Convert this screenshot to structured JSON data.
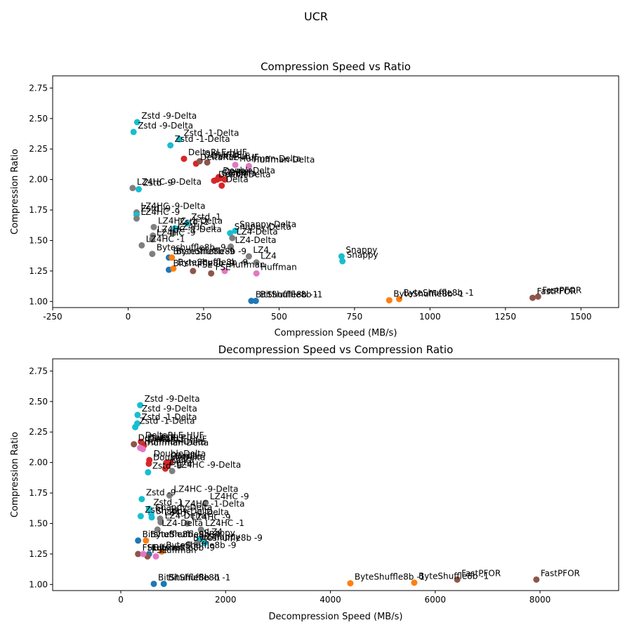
{
  "figure_title": "UCR",
  "legend": "none",
  "grid": false,
  "colors": {
    "blue": "#1f77b4",
    "orange": "#ff7f0e",
    "red": "#d62728",
    "brown": "#8c564b",
    "pink": "#e377c2",
    "gray": "#7f7f7f",
    "cyan": "#17becf"
  },
  "chart_data": [
    {
      "type": "scatter",
      "title": "Compression Speed vs Ratio",
      "xlabel": "Compression Speed (MB/s)",
      "ylabel": "Compression Ratio",
      "xlim": [
        -250,
        1625
      ],
      "ylim": [
        0.95,
        2.85
      ],
      "xticks": [
        -250,
        0,
        250,
        500,
        750,
        1000,
        1250,
        1500
      ],
      "yticks": [
        1.0,
        1.25,
        1.5,
        1.75,
        2.0,
        2.25,
        2.5,
        2.75
      ],
      "points": [
        {
          "x": 30,
          "y": 2.47,
          "label": "Zstd -9-Delta",
          "color": "cyan"
        },
        {
          "x": 18,
          "y": 2.39,
          "label": "Zstd -9-Delta",
          "color": "cyan"
        },
        {
          "x": 170,
          "y": 2.33,
          "label": "Zstd -1-Delta",
          "color": "cyan"
        },
        {
          "x": 140,
          "y": 2.28,
          "label": "Zstd -1-Delta",
          "color": "cyan"
        },
        {
          "x": 185,
          "y": 2.17,
          "label": "DeltaRLE-HUF",
          "color": "red"
        },
        {
          "x": 225,
          "y": 2.13,
          "label": "DeltaRLE-HUF",
          "color": "red"
        },
        {
          "x": 237,
          "y": 2.15,
          "label": "DeltaRLE",
          "color": "brown"
        },
        {
          "x": 262,
          "y": 2.14,
          "label": "DeltaRLE",
          "color": "brown"
        },
        {
          "x": 355,
          "y": 2.12,
          "label": "Huffman-Delta",
          "color": "pink"
        },
        {
          "x": 400,
          "y": 2.11,
          "label": "Huffman-Delta",
          "color": "pink"
        },
        {
          "x": 300,
          "y": 2.02,
          "label": "DoubleDelta",
          "color": "red"
        },
        {
          "x": 285,
          "y": 1.99,
          "label": "DoubleDelta",
          "color": "red"
        },
        {
          "x": 295,
          "y": 2.0,
          "label": "Gorilla",
          "color": "red"
        },
        {
          "x": 320,
          "y": 2.0,
          "label": "Gorilla",
          "color": "red"
        },
        {
          "x": 305,
          "y": 2.01,
          "label": "Delta",
          "color": "red"
        },
        {
          "x": 310,
          "y": 1.95,
          "label": "Delta",
          "color": "red"
        },
        {
          "x": 15,
          "y": 1.93,
          "label": "LZ4HC -9-Delta",
          "color": "gray"
        },
        {
          "x": 35,
          "y": 1.92,
          "label": "Zstd -9",
          "color": "cyan"
        },
        {
          "x": 28,
          "y": 1.73,
          "label": "LZ4HC -9-Delta",
          "color": "gray"
        },
        {
          "x": 28,
          "y": 1.71,
          "label": "Zstd -9",
          "color": "cyan"
        },
        {
          "x": 28,
          "y": 1.68,
          "label": "LZ4HC -9",
          "color": "gray"
        },
        {
          "x": 195,
          "y": 1.64,
          "label": "Zstd -1",
          "color": "cyan"
        },
        {
          "x": 85,
          "y": 1.61,
          "label": "LZ4HC -1-Delta",
          "color": "gray"
        },
        {
          "x": 155,
          "y": 1.6,
          "label": "Zstd -1",
          "color": "cyan"
        },
        {
          "x": 355,
          "y": 1.58,
          "label": "Snappy-Delta",
          "color": "cyan"
        },
        {
          "x": 338,
          "y": 1.56,
          "label": "Snappy-Delta",
          "color": "cyan"
        },
        {
          "x": 82,
          "y": 1.54,
          "label": "LZ4HC -1-Delta",
          "color": "gray"
        },
        {
          "x": 150,
          "y": 1.56,
          "label": "LZ4HC -1",
          "color": "gray"
        },
        {
          "x": 345,
          "y": 1.52,
          "label": "LZ4-Delta",
          "color": "gray"
        },
        {
          "x": 80,
          "y": 1.51,
          "label": "LZ4HC -9",
          "color": "gray"
        },
        {
          "x": 45,
          "y": 1.46,
          "label": "LZ4HC -1",
          "color": "gray"
        },
        {
          "x": 340,
          "y": 1.45,
          "label": "LZ4-Delta",
          "color": "gray"
        },
        {
          "x": 80,
          "y": 1.39,
          "label": "Byteshuffle8b -9",
          "color": "gray"
        },
        {
          "x": 400,
          "y": 1.37,
          "label": "LZ4",
          "color": "gray"
        },
        {
          "x": 135,
          "y": 1.36,
          "label": "Bitshuffle8b -9",
          "color": "blue"
        },
        {
          "x": 145,
          "y": 1.36,
          "label": "ByteShuffle8b -9",
          "color": "orange"
        },
        {
          "x": 425,
          "y": 1.32,
          "label": "LZ4",
          "color": "gray"
        },
        {
          "x": 135,
          "y": 1.26,
          "label": "Bitshuffle8b -9",
          "color": "blue"
        },
        {
          "x": 150,
          "y": 1.27,
          "label": "ByteShuffle8b -9",
          "color": "orange"
        },
        {
          "x": 215,
          "y": 1.25,
          "label": "FSE",
          "color": "brown"
        },
        {
          "x": 275,
          "y": 1.23,
          "label": "FSE",
          "color": "brown"
        },
        {
          "x": 320,
          "y": 1.25,
          "label": "Huffman",
          "color": "pink"
        },
        {
          "x": 425,
          "y": 1.23,
          "label": "Huffman",
          "color": "pink"
        },
        {
          "x": 707,
          "y": 1.37,
          "label": "Snappy",
          "color": "cyan"
        },
        {
          "x": 710,
          "y": 1.33,
          "label": "Snappy",
          "color": "cyan"
        },
        {
          "x": 408,
          "y": 1.005,
          "label": "BitShuffle8b -1",
          "color": "blue"
        },
        {
          "x": 423,
          "y": 1.005,
          "label": "BitShuffle8b -1",
          "color": "blue"
        },
        {
          "x": 865,
          "y": 1.01,
          "label": "ByteShuffle8b -1",
          "color": "orange"
        },
        {
          "x": 898,
          "y": 1.02,
          "label": "ByteShuffle8b -1",
          "color": "orange"
        },
        {
          "x": 1340,
          "y": 1.03,
          "label": "FastPFOR",
          "color": "brown"
        },
        {
          "x": 1358,
          "y": 1.04,
          "label": "FastPFOR",
          "color": "brown"
        }
      ]
    },
    {
      "type": "scatter",
      "title": "Decompression Speed vs Compression Ratio",
      "xlabel": "Decompression Speed (MB/s)",
      "ylabel": "Compression Ratio",
      "xlim": [
        -1300,
        9500
      ],
      "ylim": [
        0.95,
        2.85
      ],
      "xticks": [
        0,
        2000,
        4000,
        6000,
        8000
      ],
      "yticks": [
        1.0,
        1.25,
        1.5,
        1.75,
        2.0,
        2.25,
        2.5,
        2.75
      ],
      "points": [
        {
          "x": 370,
          "y": 2.47,
          "label": "Zstd -9-Delta",
          "color": "cyan"
        },
        {
          "x": 320,
          "y": 2.39,
          "label": "Zstd -9-Delta",
          "color": "cyan"
        },
        {
          "x": 315,
          "y": 2.32,
          "label": "Zstd -1-Delta",
          "color": "cyan"
        },
        {
          "x": 275,
          "y": 2.29,
          "label": "Zstd -1-Delta",
          "color": "cyan"
        },
        {
          "x": 385,
          "y": 2.17,
          "label": "DeltaRLE-HUF",
          "color": "red"
        },
        {
          "x": 430,
          "y": 2.15,
          "label": "DeltaRLE",
          "color": "brown"
        },
        {
          "x": 250,
          "y": 2.15,
          "label": "DeltaRLE",
          "color": "brown"
        },
        {
          "x": 440,
          "y": 2.14,
          "label": "DeltaRLE-HUF",
          "color": "red"
        },
        {
          "x": 370,
          "y": 2.12,
          "label": "Huffman-Delta",
          "color": "pink"
        },
        {
          "x": 420,
          "y": 2.11,
          "label": "Huffman-Delta",
          "color": "pink"
        },
        {
          "x": 545,
          "y": 2.02,
          "label": "DoubleDelta",
          "color": "red"
        },
        {
          "x": 535,
          "y": 1.99,
          "label": "DoubleDelta",
          "color": "red"
        },
        {
          "x": 870,
          "y": 2.0,
          "label": "Gorilla",
          "color": "red"
        },
        {
          "x": 950,
          "y": 2.0,
          "label": "Gorilla",
          "color": "red"
        },
        {
          "x": 890,
          "y": 1.97,
          "label": "Delta",
          "color": "red"
        },
        {
          "x": 850,
          "y": 1.95,
          "label": "Delta",
          "color": "red"
        },
        {
          "x": 980,
          "y": 1.93,
          "label": "LZ4HC -9-Delta",
          "color": "gray"
        },
        {
          "x": 520,
          "y": 1.92,
          "label": "Zstd -9",
          "color": "cyan"
        },
        {
          "x": 930,
          "y": 1.73,
          "label": "LZ4HC -9-Delta",
          "color": "gray"
        },
        {
          "x": 400,
          "y": 1.7,
          "label": "Zstd -9",
          "color": "cyan"
        },
        {
          "x": 1620,
          "y": 1.67,
          "label": "LZ4HC -9",
          "color": "gray"
        },
        {
          "x": 540,
          "y": 1.62,
          "label": "Zstd -1",
          "color": "cyan"
        },
        {
          "x": 1050,
          "y": 1.61,
          "label": "LZ4HC -1-Delta",
          "color": "gray"
        },
        {
          "x": 580,
          "y": 1.58,
          "label": "Snappy-Delta",
          "color": "cyan"
        },
        {
          "x": 380,
          "y": 1.56,
          "label": "Zstd -1",
          "color": "cyan"
        },
        {
          "x": 590,
          "y": 1.55,
          "label": "Snappy-Delta",
          "color": "cyan"
        },
        {
          "x": 750,
          "y": 1.54,
          "label": "LZ4HC -1-Delta",
          "color": "gray"
        },
        {
          "x": 760,
          "y": 1.51,
          "label": "LZ4-Delta",
          "color": "gray"
        },
        {
          "x": 1270,
          "y": 1.5,
          "label": "LZ4HC -9",
          "color": "gray"
        },
        {
          "x": 700,
          "y": 1.45,
          "label": "LZ4-Delta",
          "color": "gray"
        },
        {
          "x": 1530,
          "y": 1.45,
          "label": "LZ4HC -1",
          "color": "gray"
        },
        {
          "x": 1560,
          "y": 1.38,
          "label": "LZ4",
          "color": "gray"
        },
        {
          "x": 1500,
          "y": 1.37,
          "label": "Snappy",
          "color": "cyan"
        },
        {
          "x": 1450,
          "y": 1.34,
          "label": "LZ4",
          "color": "gray"
        },
        {
          "x": 1600,
          "y": 1.34,
          "label": "Snappy",
          "color": "cyan"
        },
        {
          "x": 330,
          "y": 1.36,
          "label": "Bitshuffle8b -9",
          "color": "blue"
        },
        {
          "x": 480,
          "y": 1.36,
          "label": "ByteShuffle8b -9",
          "color": "orange"
        },
        {
          "x": 1300,
          "y": 1.33,
          "label": "Byteshuffle8b -9",
          "color": "gray"
        },
        {
          "x": 540,
          "y": 1.25,
          "label": "Bitshuffle8b -9",
          "color": "blue"
        },
        {
          "x": 780,
          "y": 1.27,
          "label": "ByteShuffle8b -9",
          "color": "orange"
        },
        {
          "x": 330,
          "y": 1.25,
          "label": "FSE",
          "color": "brown"
        },
        {
          "x": 510,
          "y": 1.23,
          "label": "FSE",
          "color": "brown"
        },
        {
          "x": 430,
          "y": 1.25,
          "label": "Huffman",
          "color": "pink"
        },
        {
          "x": 670,
          "y": 1.23,
          "label": "Huffman",
          "color": "pink"
        },
        {
          "x": 630,
          "y": 1.005,
          "label": "BitShuffle8b -1",
          "color": "blue"
        },
        {
          "x": 820,
          "y": 1.005,
          "label": "BitShuffle8b -1",
          "color": "blue"
        },
        {
          "x": 4380,
          "y": 1.01,
          "label": "ByteShuffle8b -1",
          "color": "orange"
        },
        {
          "x": 5600,
          "y": 1.015,
          "label": "ByteShuffle8b -1",
          "color": "orange"
        },
        {
          "x": 6420,
          "y": 1.04,
          "label": "FastPFOR",
          "color": "brown"
        },
        {
          "x": 7930,
          "y": 1.04,
          "label": "FastPFOR",
          "color": "brown"
        }
      ]
    }
  ]
}
